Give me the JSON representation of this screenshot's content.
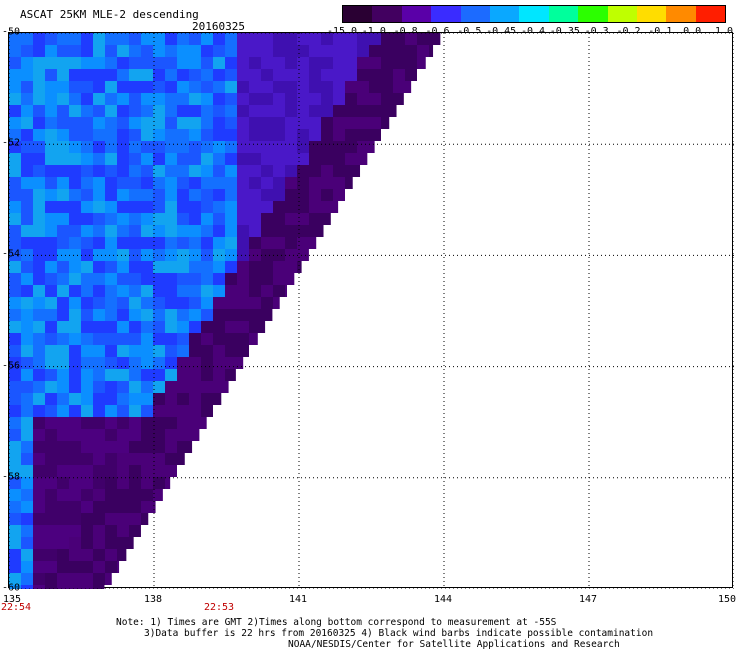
{
  "header": {
    "title": "ASCAT 25KM MLE-2 descending",
    "date": "20160325"
  },
  "colorbar": {
    "labels": [
      "-15.0",
      "-1.0",
      "-0.8",
      "-0.6",
      "-0.5",
      "-0.45",
      "-0.4",
      "-0.35",
      "-0.3",
      "-0.2",
      "-0.1",
      "0.0",
      "1.0"
    ],
    "colors": [
      "#2a0033",
      "#420060",
      "#5a00a8",
      "#3a2cff",
      "#1c6bff",
      "#0aa8ff",
      "#00e6ff",
      "#00ff9c",
      "#2cff00",
      "#bfff00",
      "#ffdd00",
      "#ff8a00",
      "#ff1e00"
    ]
  },
  "map_data": {
    "lon_range": [
      135,
      150
    ],
    "lat_range": [
      -60,
      -50
    ],
    "lon_ticks": [
      "135",
      "138",
      "141",
      "144",
      "147",
      "150"
    ],
    "lat_ticks": [
      "-50",
      "-52",
      "-54",
      "-56",
      "-58",
      "-60"
    ],
    "swath_edge": [
      [
        144,
        -50
      ],
      [
        137,
        -60
      ]
    ],
    "time_labels": [
      {
        "text": "22:54",
        "lon": 135
      },
      {
        "text": "22:53",
        "lon": 139.2
      }
    ],
    "grid": "dotted"
  },
  "notes": {
    "line1": "Note: 1) Times are GMT 2)Times along bottom correspond to measurement at -55S",
    "line2": "3)Data buffer is 22 hrs from 20160325 4) Black wind barbs indicate possible contamination",
    "line3": "NOAA/NESDIS/Center for Satellite Applications and Research"
  }
}
